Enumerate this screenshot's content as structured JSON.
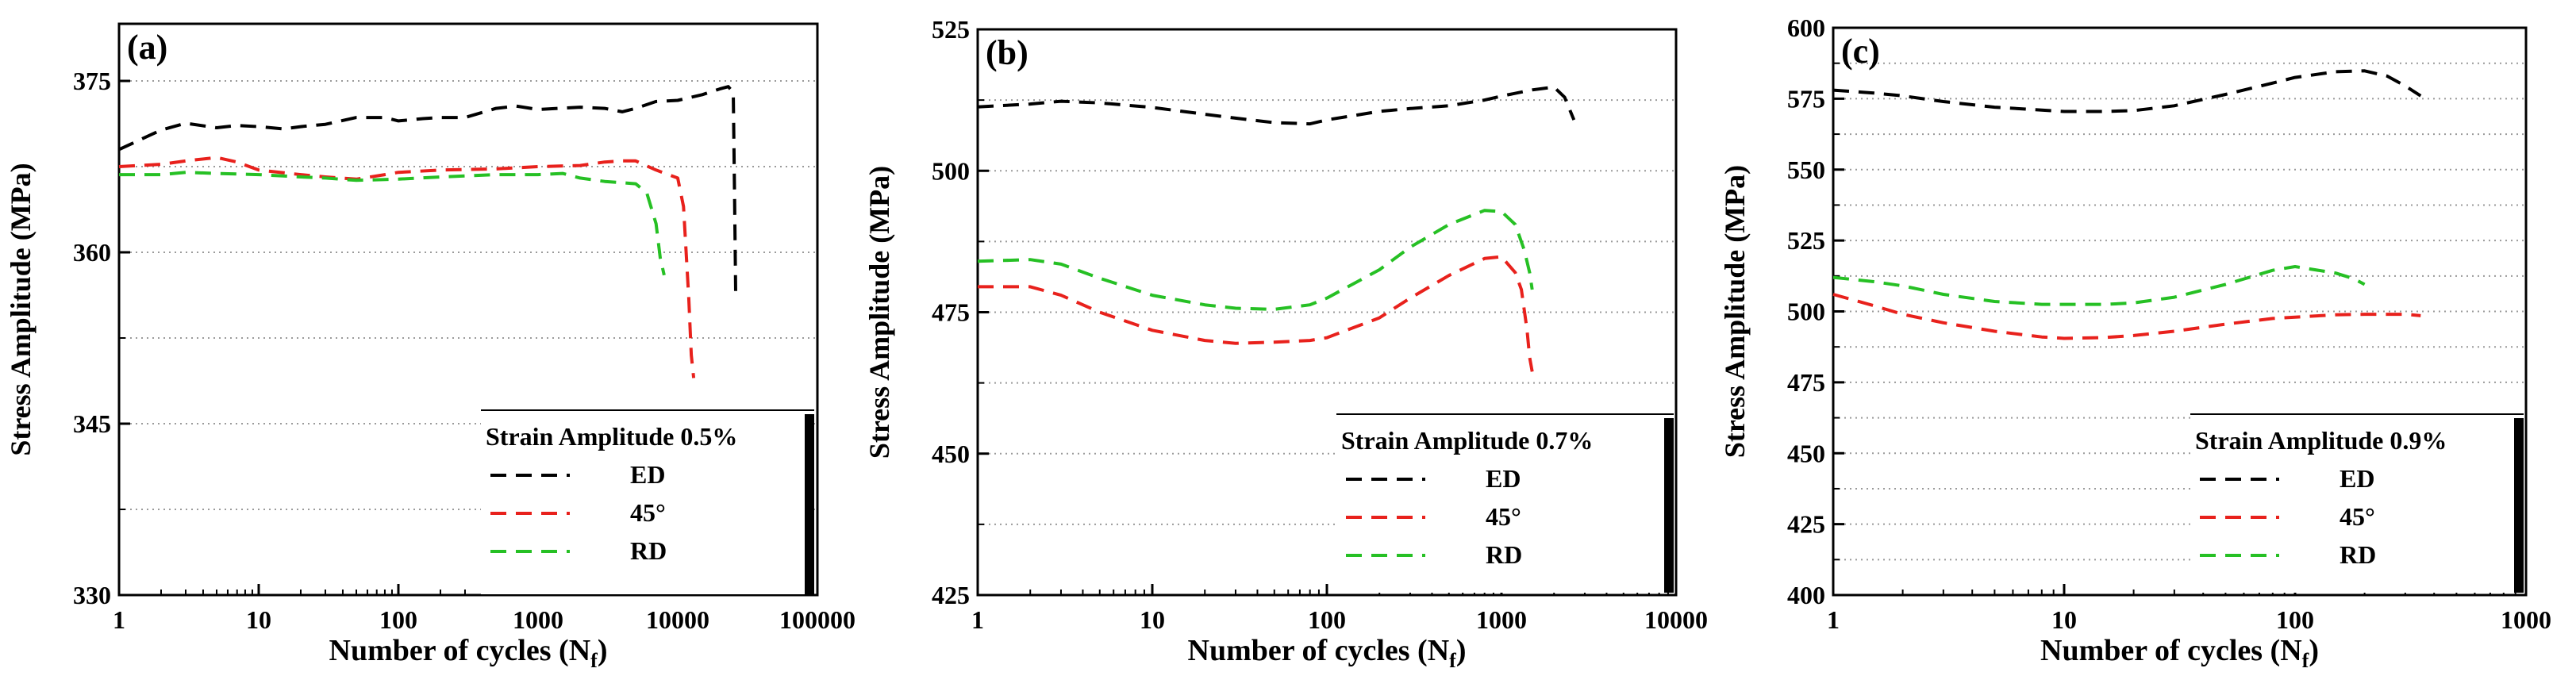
{
  "chart_data": [
    {
      "type": "line",
      "panel_label": "(a)",
      "xscale": "log",
      "xlim": [
        1,
        100000
      ],
      "ylim": [
        330,
        380
      ],
      "xticks": [
        1,
        10,
        100,
        1000,
        10000,
        100000
      ],
      "xtick_labels": [
        "1",
        "10",
        "100",
        "1000",
        "10000",
        "100000"
      ],
      "yticks": [
        330,
        345,
        360,
        375
      ],
      "ytick_labels": [
        "330",
        "345",
        "360",
        "375"
      ],
      "xlabel": "Number of cycles (N",
      "xlabel_sub": "f",
      "xlabel_end": ")",
      "ylabel": "Stress Amplitude (MPa)",
      "grid": "horizontal dotted",
      "legend": {
        "title": "Strain Amplitude 0.5%",
        "position": "bottom-right",
        "entries": [
          "ED",
          "45°",
          "RD"
        ]
      },
      "series": [
        {
          "name": "ED",
          "color": "#000000",
          "x": [
            1,
            2,
            3,
            5,
            7,
            10,
            15,
            20,
            30,
            50,
            80,
            100,
            150,
            200,
            300,
            500,
            700,
            1000,
            2000,
            3000,
            4000,
            5000,
            7000,
            10000,
            15000,
            20000,
            23000,
            25000,
            25500,
            26000
          ],
          "y": [
            369.0,
            370.7,
            371.3,
            370.9,
            371.1,
            371.0,
            370.8,
            371.0,
            371.2,
            371.8,
            371.8,
            371.5,
            371.7,
            371.8,
            371.8,
            372.6,
            372.8,
            372.5,
            372.7,
            372.6,
            372.3,
            372.6,
            373.2,
            373.3,
            373.8,
            374.3,
            374.5,
            374.0,
            365.0,
            356.5
          ]
        },
        {
          "name": "45°",
          "color": "#e8211c",
          "x": [
            1,
            2,
            3,
            5,
            7,
            10,
            20,
            30,
            50,
            80,
            100,
            200,
            500,
            1000,
            2000,
            3000,
            4000,
            5000,
            7000,
            10000,
            11000,
            12000,
            12500,
            13000
          ],
          "y": [
            367.5,
            367.7,
            368.0,
            368.3,
            367.9,
            367.2,
            366.8,
            366.6,
            366.4,
            366.8,
            367.0,
            367.2,
            367.3,
            367.5,
            367.6,
            367.9,
            368.0,
            368.0,
            367.2,
            366.5,
            364.0,
            356.0,
            351.0,
            349.0
          ]
        },
        {
          "name": "RD",
          "color": "#26c024",
          "x": [
            1,
            2,
            3,
            5,
            10,
            20,
            30,
            50,
            100,
            200,
            500,
            1000,
            1500,
            2000,
            3000,
            5000,
            6000,
            7000,
            7500,
            8000
          ],
          "y": [
            366.8,
            366.8,
            367.0,
            366.9,
            366.8,
            366.6,
            366.5,
            366.3,
            366.4,
            366.6,
            366.8,
            366.8,
            366.9,
            366.5,
            366.2,
            366.0,
            365.2,
            362.5,
            359.5,
            358.0
          ]
        }
      ]
    },
    {
      "type": "line",
      "panel_label": "(b)",
      "xscale": "log",
      "xlim": [
        1,
        10000
      ],
      "ylim": [
        425,
        525
      ],
      "xticks": [
        1,
        10,
        100,
        1000,
        10000
      ],
      "xtick_labels": [
        "1",
        "10",
        "100",
        "1000",
        "10000"
      ],
      "yticks": [
        425,
        450,
        475,
        500,
        525
      ],
      "ytick_labels": [
        "425",
        "450",
        "475",
        "500",
        "525"
      ],
      "xlabel": "Number of cycles (N",
      "xlabel_sub": "f",
      "xlabel_end": ")",
      "ylabel": "Stress Amplitude (MPa)",
      "grid": "horizontal dotted",
      "legend": {
        "title": "Strain Amplitude 0.7%",
        "position": "bottom-right",
        "entries": [
          "ED",
          "45°",
          "RD"
        ]
      },
      "series": [
        {
          "name": "ED",
          "color": "#000000",
          "x": [
            1,
            2,
            3,
            5,
            10,
            20,
            30,
            50,
            80,
            100,
            200,
            300,
            500,
            800,
            1000,
            1500,
            2000,
            2300,
            2600
          ],
          "y": [
            511.3,
            511.8,
            512.3,
            512.0,
            511.2,
            510.0,
            509.3,
            508.5,
            508.3,
            509.0,
            510.5,
            511.0,
            511.5,
            512.5,
            513.2,
            514.3,
            514.8,
            513.0,
            509.0
          ]
        },
        {
          "name": "45°",
          "color": "#e8211c",
          "x": [
            1,
            2,
            3,
            5,
            10,
            20,
            30,
            50,
            80,
            100,
            200,
            300,
            500,
            800,
            1000,
            1200,
            1300,
            1400,
            1450,
            1500
          ],
          "y": [
            479.5,
            479.5,
            478.0,
            475.0,
            471.8,
            470.0,
            469.5,
            469.7,
            470.0,
            470.5,
            474.0,
            477.5,
            481.5,
            484.5,
            484.8,
            482.0,
            479.0,
            472.0,
            467.0,
            464.5
          ]
        },
        {
          "name": "RD",
          "color": "#26c024",
          "x": [
            1,
            2,
            3,
            5,
            10,
            20,
            30,
            50,
            80,
            100,
            200,
            300,
            500,
            800,
            1000,
            1200,
            1350,
            1450,
            1500
          ],
          "y": [
            484.0,
            484.3,
            483.5,
            481.0,
            478.0,
            476.3,
            475.7,
            475.5,
            476.3,
            477.5,
            482.5,
            486.5,
            490.5,
            493.0,
            492.8,
            490.5,
            486.0,
            482.0,
            479.0
          ]
        }
      ]
    },
    {
      "type": "line",
      "panel_label": "(c)",
      "xscale": "log",
      "xlim": [
        1,
        1000
      ],
      "ylim": [
        400,
        600
      ],
      "xticks": [
        1,
        10,
        100,
        1000
      ],
      "xtick_labels": [
        "1",
        "10",
        "100",
        "1000"
      ],
      "yticks": [
        400,
        425,
        450,
        475,
        500,
        525,
        550,
        575,
        600
      ],
      "ytick_labels": [
        "400",
        "425",
        "450",
        "475",
        "500",
        "525",
        "550",
        "575",
        "600"
      ],
      "xlabel": "Number of cycles (N",
      "xlabel_sub": "f",
      "xlabel_end": ")",
      "ylabel": "Stress Amplitude (MPa)",
      "grid": "horizontal dotted",
      "legend": {
        "title": "Strain Amplitude 0.9%",
        "position": "bottom-right",
        "entries": [
          "ED",
          "45°",
          "RD"
        ]
      },
      "series": [
        {
          "name": "ED",
          "color": "#000000",
          "x": [
            1,
            1.5,
            2,
            3,
            5,
            8,
            10,
            15,
            20,
            30,
            50,
            80,
            100,
            150,
            200,
            250,
            300,
            350
          ],
          "y": [
            578.0,
            577.0,
            576.0,
            574.0,
            572.0,
            571.0,
            570.5,
            570.5,
            570.8,
            572.5,
            576.5,
            580.5,
            582.5,
            584.5,
            584.8,
            583.0,
            579.5,
            576.0
          ]
        },
        {
          "name": "45°",
          "color": "#e8211c",
          "x": [
            1,
            1.5,
            2,
            3,
            5,
            8,
            10,
            15,
            20,
            30,
            50,
            80,
            100,
            150,
            200,
            250,
            300,
            350
          ],
          "y": [
            506.0,
            502.0,
            499.0,
            496.0,
            493.0,
            491.0,
            490.5,
            490.8,
            491.5,
            493.0,
            495.5,
            497.5,
            498.0,
            498.8,
            499.0,
            499.0,
            499.0,
            498.5
          ]
        },
        {
          "name": "RD",
          "color": "#26c024",
          "x": [
            1,
            1.5,
            2,
            3,
            5,
            8,
            10,
            15,
            20,
            30,
            50,
            80,
            100,
            150,
            180,
            200
          ],
          "y": [
            512.0,
            510.5,
            509.0,
            506.0,
            503.5,
            502.5,
            502.5,
            502.5,
            503.0,
            505.0,
            509.5,
            514.5,
            515.8,
            513.5,
            511.5,
            509.5
          ]
        }
      ]
    }
  ]
}
